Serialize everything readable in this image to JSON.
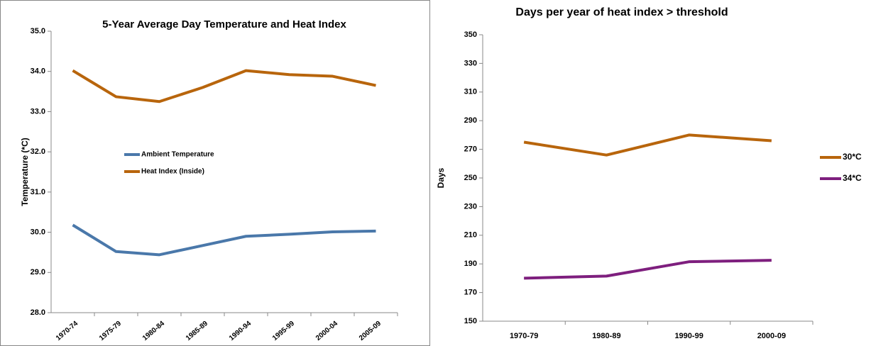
{
  "chart_data": [
    {
      "type": "line",
      "title": "5-Year Average Day Temperature and Heat Index",
      "y_label": "Temperature (*C)",
      "categories": [
        "1970-74",
        "1975-79",
        "1980-84",
        "1985-89",
        "1990-94",
        "1995-99",
        "2000-04",
        "2005-09"
      ],
      "series": [
        {
          "name": "Ambient Temperature",
          "color": "#4a78aa",
          "values": [
            30.18,
            29.52,
            29.44,
            29.67,
            29.9,
            29.95,
            30.01,
            30.03
          ]
        },
        {
          "name": "Heat Index (Inside)",
          "color": "#b8650c",
          "values": [
            34.02,
            33.37,
            33.25,
            33.6,
            34.02,
            33.92,
            33.88,
            33.65
          ]
        }
      ],
      "ylim": [
        28,
        35
      ],
      "yticks": [
        {
          "value": 28,
          "label": "28.0"
        },
        {
          "value": 29,
          "label": "29.0"
        },
        {
          "value": 30,
          "label": "30.0"
        },
        {
          "value": 31,
          "label": "31.0"
        },
        {
          "value": 32,
          "label": "32.0"
        },
        {
          "value": 33,
          "label": "33.0"
        },
        {
          "value": 34,
          "label": "34.0"
        },
        {
          "value": 35,
          "label": "35.0"
        }
      ],
      "legend": "inside-left"
    },
    {
      "type": "line",
      "title": "Days per year of heat index > threshold",
      "y_label": "Days",
      "categories": [
        "1970-79",
        "1980-89",
        "1990-99",
        "2000-09"
      ],
      "series": [
        {
          "name": "30*C",
          "color": "#b8650c",
          "values": [
            275,
            266,
            280,
            276
          ]
        },
        {
          "name": "34*C",
          "color": "#7e1f7e",
          "values": [
            180,
            181.5,
            191.5,
            192.5
          ]
        }
      ],
      "ylim": [
        150,
        350
      ],
      "yticks": [
        150,
        170,
        190,
        210,
        230,
        250,
        270,
        290,
        310,
        330,
        350
      ],
      "legend": "right"
    }
  ]
}
